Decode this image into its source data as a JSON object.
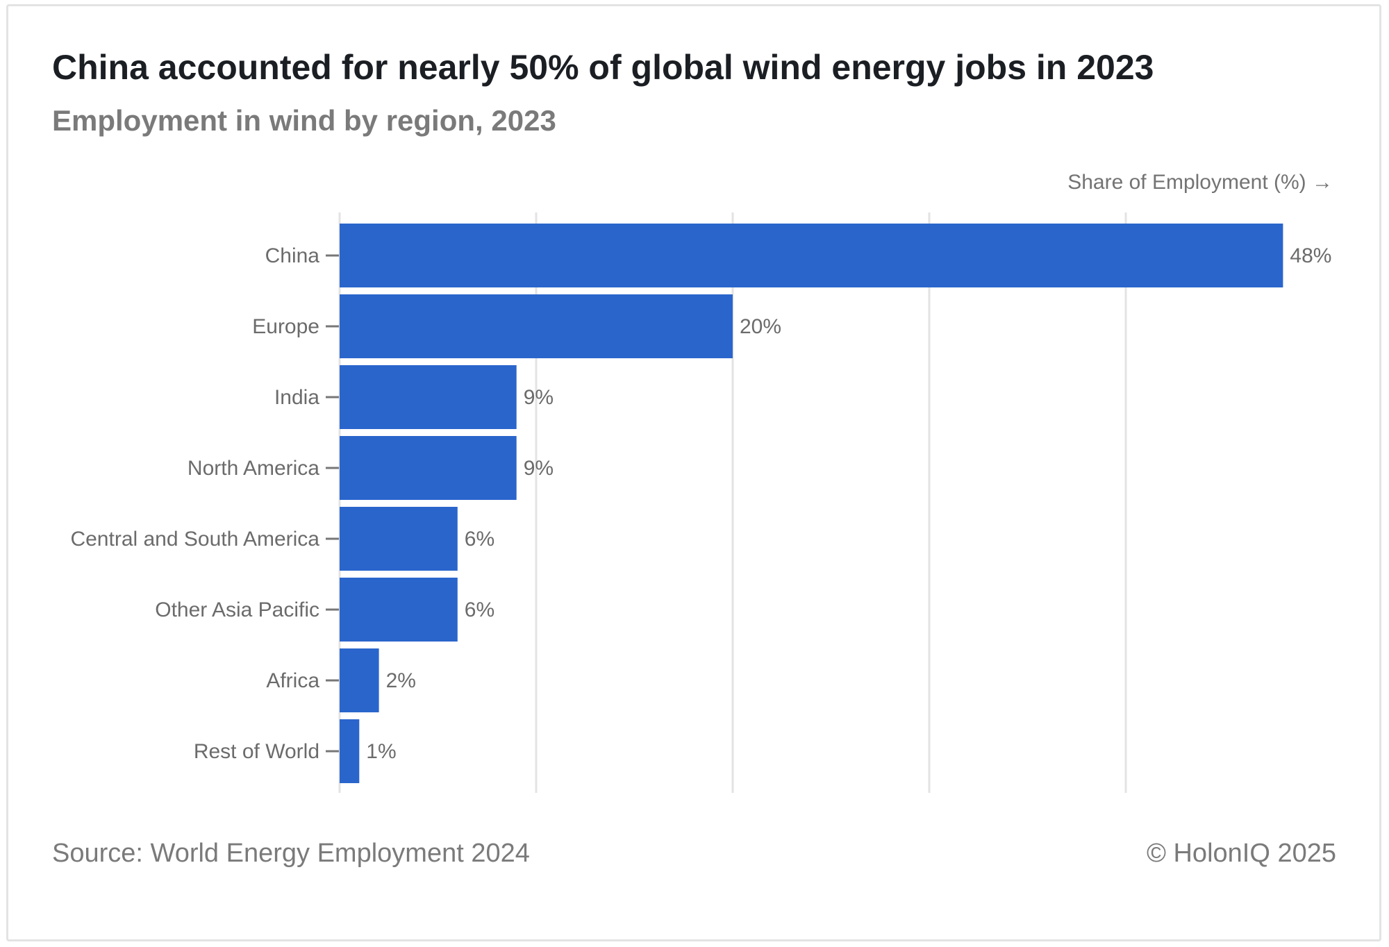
{
  "header": {
    "title": "China accounted for nearly 50% of global wind energy jobs in 2023",
    "subtitle": "Employment in wind by region, 2023"
  },
  "footer": {
    "source": "Source: World Energy Employment 2024",
    "copyright": "© HolonIQ 2025"
  },
  "colors": {
    "bar": "#2a65cc",
    "grid": "#e3e3e3",
    "axis": "#777777"
  },
  "chart_data": {
    "type": "bar",
    "orientation": "horizontal",
    "title": "China accounted for nearly 50% of global wind energy jobs in 2023",
    "subtitle": "Employment in wind by region, 2023",
    "xlabel": "Share of Employment (%) →",
    "ylabel": "",
    "categories": [
      "China",
      "Europe",
      "India",
      "North America",
      "Central and South America",
      "Other Asia Pacific",
      "Africa",
      "Rest of World"
    ],
    "values": [
      48,
      20,
      9,
      9,
      6,
      6,
      2,
      1
    ],
    "value_labels": [
      "48%",
      "20%",
      "9%",
      "9%",
      "6%",
      "6%",
      "2%",
      "1%"
    ],
    "xlim": [
      0,
      50
    ],
    "gridlines_x": [
      0,
      10,
      20,
      30,
      40
    ],
    "grid": true,
    "legend": "none"
  }
}
